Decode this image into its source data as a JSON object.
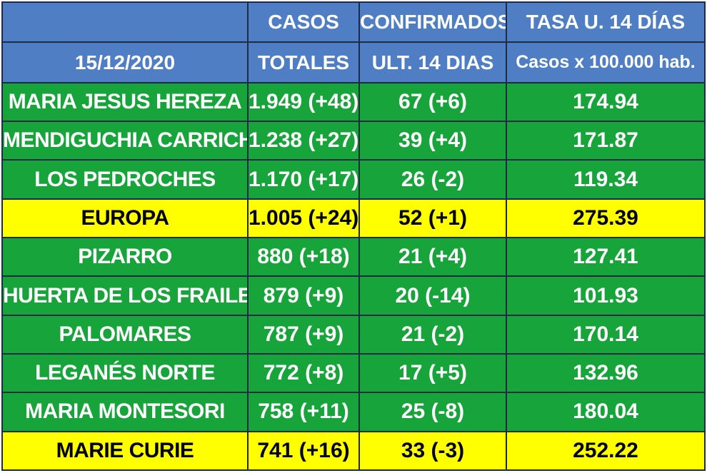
{
  "header": {
    "row1": {
      "col1": "",
      "col2": "CASOS",
      "col3": "CONFIRMADOS",
      "col4": "TASA U. 14 DÍAS"
    },
    "row2": {
      "col1": "15/12/2020",
      "col2": "TOTALES",
      "col3": "ULT. 14 DIAS",
      "col4": "Casos x 100.000 hab."
    }
  },
  "rows": [
    {
      "name": "MARIA JESUS HEREZA",
      "totales": "1.949 (+48)",
      "ult14": "67 (+6)",
      "tasa": "174.94",
      "highlight": false
    },
    {
      "name": "MENDIGUCHIA CARRICHE",
      "totales": "1.238 (+27)",
      "ult14": "39 (+4)",
      "tasa": "171.87",
      "highlight": false
    },
    {
      "name": "LOS PEDROCHES",
      "totales": "1.170 (+17)",
      "ult14": "26 (-2)",
      "tasa": "119.34",
      "highlight": false
    },
    {
      "name": "EUROPA",
      "totales": "1.005 (+24)",
      "ult14": "52 (+1)",
      "tasa": "275.39",
      "highlight": true
    },
    {
      "name": "PIZARRO",
      "totales": "880 (+18)",
      "ult14": "21 (+4)",
      "tasa": "127.41",
      "highlight": false
    },
    {
      "name": "HUERTA DE LOS FRAILES",
      "totales": "879 (+9)",
      "ult14": "20 (-14)",
      "tasa": "101.93",
      "highlight": false
    },
    {
      "name": "PALOMARES",
      "totales": "787 (+9)",
      "ult14": "21 (-2)",
      "tasa": "170.14",
      "highlight": false
    },
    {
      "name": "LEGANÉS NORTE",
      "totales": "772 (+8)",
      "ult14": "17 (+5)",
      "tasa": "132.96",
      "highlight": false
    },
    {
      "name": "MARIA MONTESORI",
      "totales": "758 (+11)",
      "ult14": "25 (-8)",
      "tasa": "180.04",
      "highlight": false
    },
    {
      "name": "MARIE CURIE",
      "totales": "741 (+16)",
      "ult14": "33 (-3)",
      "tasa": "252.22",
      "highlight": true
    }
  ],
  "colors": {
    "header_bg": "#4f7ec4",
    "green_row": "#17a43b",
    "highlight_row": "#ffff00",
    "border": "#1f2a44"
  }
}
